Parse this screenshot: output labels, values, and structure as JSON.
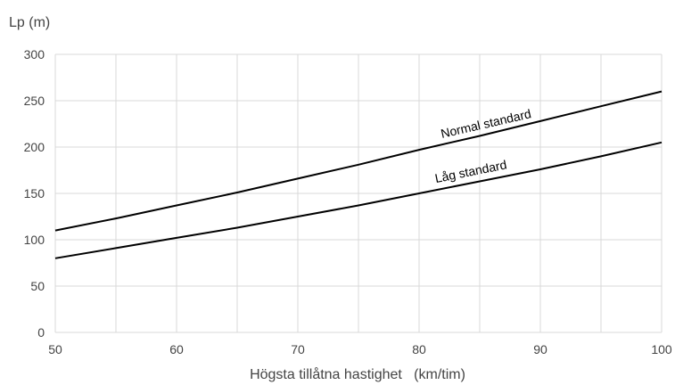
{
  "chart_data": {
    "type": "line",
    "title": "",
    "ylabel": "Lp (m)",
    "xlabel": "Högsta tillåtna hastighet   (km/tim)",
    "xlim": [
      50,
      100
    ],
    "ylim": [
      0,
      300
    ],
    "x_ticks": [
      50,
      60,
      70,
      80,
      90,
      100
    ],
    "y_ticks": [
      0,
      50,
      100,
      150,
      200,
      250,
      300
    ],
    "x_minor_step": 5,
    "grid": true,
    "colors": {
      "line": "#000000",
      "grid": "#d9d9d9",
      "text": "#444444"
    },
    "series": [
      {
        "name": "Normal standard",
        "x": [
          50,
          55,
          60,
          65,
          70,
          75,
          80,
          85,
          90,
          95,
          100
        ],
        "y": [
          110,
          123,
          137,
          151,
          166,
          181,
          197,
          212,
          228,
          244,
          260
        ]
      },
      {
        "name": "Låg standard",
        "x": [
          50,
          55,
          60,
          65,
          70,
          75,
          80,
          85,
          90,
          95,
          100
        ],
        "y": [
          80,
          91,
          102,
          113,
          125,
          137,
          150,
          163,
          176,
          190,
          205
        ]
      }
    ]
  }
}
